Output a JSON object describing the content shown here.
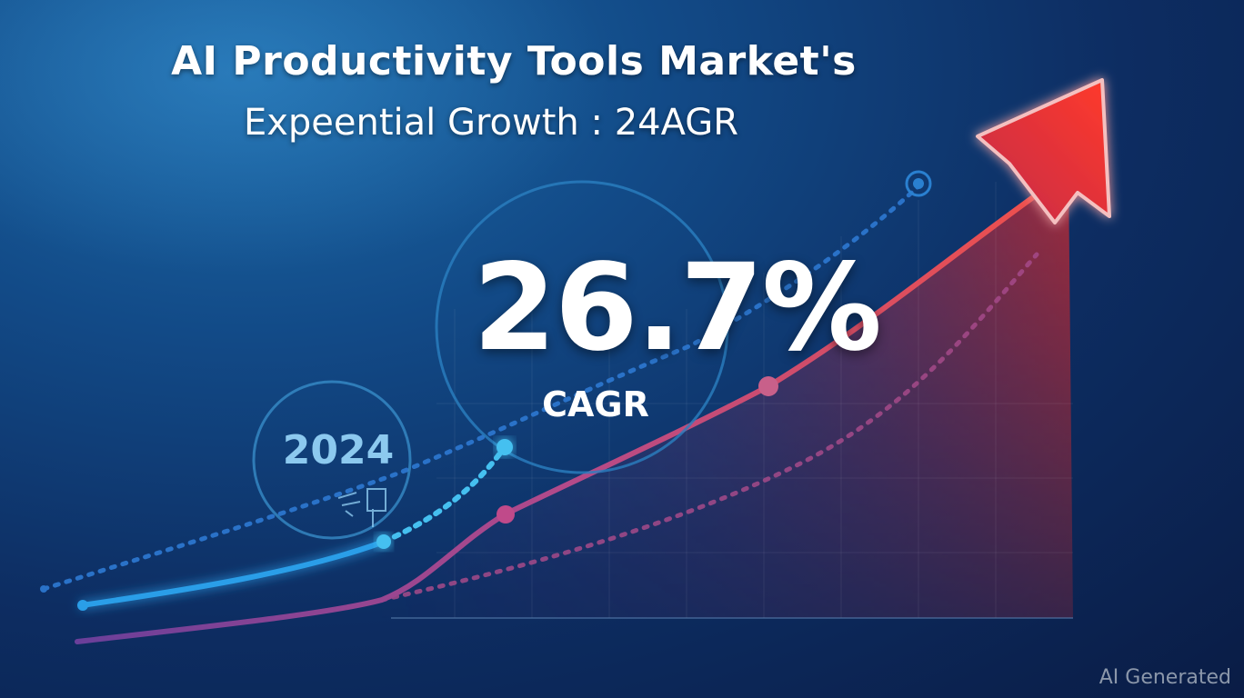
{
  "headline": {
    "line1": "AI Productivity Tools Market's",
    "line2": "Expeential Growth : 24AGR"
  },
  "highlight": {
    "value": "26.7%",
    "label": "CAGR"
  },
  "year": "2024",
  "watermark": "AI Generated",
  "colors": {
    "background_top": "#1c6aa8",
    "background_bottom": "#0a1c45",
    "arrow_red": "#e02a2a",
    "line_blue": "#2a9ee8",
    "line_magenta": "#b34a8a"
  },
  "icons": [
    "growth-arrow-icon",
    "target-icon",
    "doodle-icon"
  ]
}
